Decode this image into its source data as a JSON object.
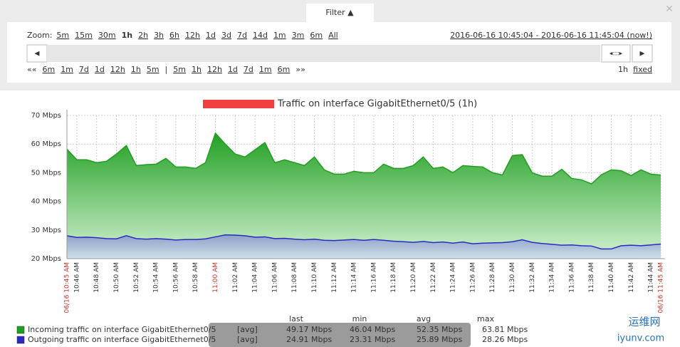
{
  "filter": {
    "tab": "Filter ▲",
    "zoom_label": "Zoom:",
    "zoom": [
      "5m",
      "15m",
      "30m",
      "1h",
      "2h",
      "3h",
      "6h",
      "12h",
      "1d",
      "3d",
      "7d",
      "14d",
      "1m",
      "3m",
      "6m",
      "All"
    ],
    "zoom_active": "1h",
    "period": "2016-06-16 10:45:04 - 2016-06-16 11:45:04 (now!)",
    "nav_back": [
      "««",
      "6m",
      "1m",
      "7d",
      "1d",
      "12h",
      "1h",
      "5m"
    ],
    "separator": "|",
    "nav_forward": [
      "5m",
      "1h",
      "12h",
      "1d",
      "7d",
      "1m",
      "6m",
      "»»"
    ],
    "period_length": "1h",
    "mode": "fixed",
    "scroll_left": "◀",
    "scroll_handle": "◂:::▸",
    "scroll_right": "▶"
  },
  "chart_data": {
    "type": "area",
    "title": "Traffic on interface GigabitEthernet0/5 (1h)",
    "x": [
      "10:45 AM",
      "10:46 AM",
      "10:47 AM",
      "10:48 AM",
      "10:49 AM",
      "10:50 AM",
      "10:51 AM",
      "10:52 AM",
      "10:53 AM",
      "10:54 AM",
      "10:55 AM",
      "10:56 AM",
      "10:57 AM",
      "10:58 AM",
      "10:59 AM",
      "11:00 AM",
      "11:01 AM",
      "11:02 AM",
      "11:03 AM",
      "11:04 AM",
      "11:05 AM",
      "11:06 AM",
      "11:07 AM",
      "11:08 AM",
      "11:09 AM",
      "11:10 AM",
      "11:11 AM",
      "11:12 AM",
      "11:13 AM",
      "11:14 AM",
      "11:15 AM",
      "11:16 AM",
      "11:17 AM",
      "11:18 AM",
      "11:19 AM",
      "11:20 AM",
      "11:21 AM",
      "11:22 AM",
      "11:23 AM",
      "11:24 AM",
      "11:25 AM",
      "11:26 AM",
      "11:27 AM",
      "11:28 AM",
      "11:29 AM",
      "11:30 AM",
      "11:31 AM",
      "11:32 AM",
      "11:33 AM",
      "11:34 AM",
      "11:35 AM",
      "11:36 AM",
      "11:37 AM",
      "11:38 AM",
      "11:39 AM",
      "11:40 AM",
      "11:41 AM",
      "11:42 AM",
      "11:43 AM",
      "11:44 AM",
      "11:45 AM"
    ],
    "xticks": [
      {
        "value": "10:45 AM",
        "label": "06/16 10:45 AM",
        "color": "#c0392b"
      },
      "10:46 AM",
      "10:48 AM",
      "10:50 AM",
      "10:52 AM",
      "10:54 AM",
      "10:56 AM",
      "10:58 AM",
      {
        "value": "11:00 AM",
        "color": "#c0392b"
      },
      "11:02 AM",
      "11:04 AM",
      "11:06 AM",
      "11:08 AM",
      "11:10 AM",
      "11:12 AM",
      "11:14 AM",
      "11:16 AM",
      "11:18 AM",
      "11:20 AM",
      "11:22 AM",
      "11:24 AM",
      "11:26 AM",
      "11:28 AM",
      "11:30 AM",
      "11:32 AM",
      "11:34 AM",
      "11:36 AM",
      "11:38 AM",
      "11:40 AM",
      "11:42 AM",
      "11:44 AM",
      {
        "value": "11:45 AM",
        "label": "06/16 11:45 AM",
        "color": "#c0392b"
      }
    ],
    "ylim": [
      20,
      70
    ],
    "yticks": [
      {
        "value": 20,
        "label": "20 Mbps"
      },
      {
        "value": 30,
        "label": "30 Mbps"
      },
      {
        "value": 40,
        "label": "40 Mbps"
      },
      {
        "value": 50,
        "label": "50 Mbps"
      },
      {
        "value": 60,
        "label": "60 Mbps"
      },
      {
        "value": 70,
        "label": "70 Mbps"
      }
    ],
    "grid": true,
    "legend_columns": [
      "last",
      "min",
      "avg",
      "max"
    ],
    "series": [
      {
        "name": "Incoming traffic on interface GigabitEthernet0/5",
        "color": "#1e9e1e",
        "function": "[avg]",
        "stats": [
          "49.17 Mbps",
          "46.04 Mbps",
          "52.35 Mbps",
          "63.81 Mbps"
        ],
        "values": [
          58.2,
          54.5,
          54.5,
          53.5,
          54,
          56.5,
          59.5,
          52.5,
          52.8,
          53,
          55,
          52,
          52,
          51.5,
          53.5,
          63.8,
          60,
          56.5,
          55.5,
          58,
          60.5,
          53.5,
          54.5,
          53.5,
          52.5,
          55.5,
          51,
          49.5,
          49.5,
          50.5,
          50,
          50,
          53,
          51.5,
          51.5,
          52.5,
          55.5,
          51.5,
          52,
          50,
          52.5,
          52.2,
          52,
          50,
          49.2,
          56,
          56.3,
          50,
          48.8,
          48.8,
          51.2,
          48,
          47.5,
          46.1,
          49.3,
          51,
          50.7,
          49,
          51,
          49.5,
          49.2
        ]
      },
      {
        "name": "Outgoing traffic on interface GigabitEthernet0/5",
        "color": "#2a2ac0",
        "function": "[avg]",
        "stats": [
          "24.91 Mbps",
          "23.31 Mbps",
          "25.89 Mbps",
          "28.26 Mbps"
        ],
        "values": [
          28,
          27.4,
          27.5,
          27.3,
          27,
          26.9,
          28,
          27,
          26.8,
          27,
          26.8,
          26.5,
          26.7,
          26.7,
          26.9,
          27.6,
          28.3,
          28.2,
          28,
          27.5,
          27.6,
          27,
          27.1,
          26.8,
          26.6,
          26.8,
          26.4,
          26.3,
          26.5,
          26.7,
          26.4,
          26.7,
          26.4,
          26.1,
          25.9,
          25.7,
          26,
          25.6,
          25.8,
          25.4,
          25.8,
          25.2,
          25.4,
          25.5,
          25.6,
          25.9,
          26.6,
          25.7,
          25.3,
          25,
          24.7,
          24.8,
          24.5,
          24.4,
          23.4,
          23.4,
          24.5,
          24.7,
          24.5,
          24.8,
          25.1
        ]
      }
    ]
  },
  "watermark": [
    "运维网",
    "iyunv.com"
  ]
}
